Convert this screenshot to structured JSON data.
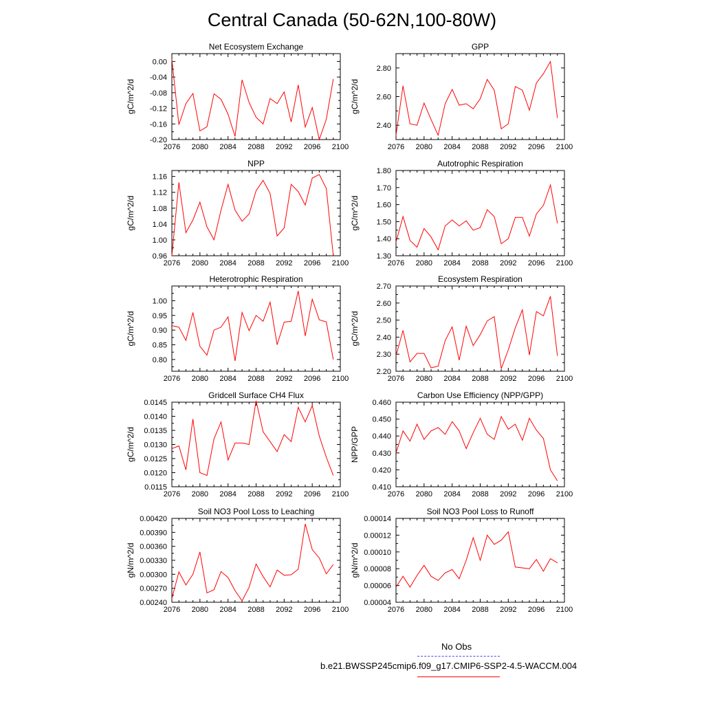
{
  "title": "Central Canada (50-62N,100-80W)",
  "legend": {
    "obs_label": "No Obs",
    "case_label": "b.e21.BWSSP245cmip6.f09_g17.CMIP6-SSP2-4.5-WACCM.004",
    "case_color": "#ff0000",
    "obs_color": "#4a4aff"
  },
  "chart_data": [
    {
      "type": "line",
      "title": "Net Ecosystem Exchange",
      "ylabel": "gC/m^2/d",
      "xlim": [
        2076,
        2100
      ],
      "ylim": [
        -0.2,
        0.02
      ],
      "xticks": [
        2076,
        2080,
        2084,
        2088,
        2092,
        2096,
        2100
      ],
      "xticklabels": [
        "2076",
        "2080",
        "2084",
        "2088",
        "2092",
        "2096",
        "2100"
      ],
      "yticks": [
        -0.2,
        -0.16,
        -0.12,
        -0.08,
        -0.04,
        0.0
      ],
      "yticklabels": [
        "-0.20",
        "-0.16",
        "-0.12",
        "-0.08",
        "-0.04",
        "0.00"
      ],
      "x": [
        2076,
        2077,
        2078,
        2079,
        2080,
        2081,
        2082,
        2083,
        2084,
        2085,
        2086,
        2087,
        2088,
        2089,
        2090,
        2091,
        2092,
        2093,
        2094,
        2095,
        2096,
        2097,
        2098,
        2099
      ],
      "values": [
        0.005,
        -0.162,
        -0.108,
        -0.082,
        -0.178,
        -0.167,
        -0.083,
        -0.097,
        -0.135,
        -0.192,
        -0.047,
        -0.105,
        -0.143,
        -0.16,
        -0.095,
        -0.108,
        -0.078,
        -0.155,
        -0.06,
        -0.168,
        -0.118,
        -0.2,
        -0.148,
        -0.045
      ]
    },
    {
      "type": "line",
      "title": "GPP",
      "ylabel": "gC/m^2/d",
      "xlim": [
        2076,
        2100
      ],
      "ylim": [
        2.3,
        2.9
      ],
      "xticks": [
        2076,
        2080,
        2084,
        2088,
        2092,
        2096,
        2100
      ],
      "xticklabels": [
        "2076",
        "2080",
        "2084",
        "2088",
        "2092",
        "2096",
        "2100"
      ],
      "yticks": [
        2.4,
        2.6,
        2.8
      ],
      "yticklabels": [
        "2.40",
        "2.60",
        "2.80"
      ],
      "x": [
        2076,
        2077,
        2078,
        2079,
        2080,
        2081,
        2082,
        2083,
        2084,
        2085,
        2086,
        2087,
        2088,
        2089,
        2090,
        2091,
        2092,
        2093,
        2094,
        2095,
        2096,
        2097,
        2098,
        2099
      ],
      "values": [
        2.33,
        2.675,
        2.41,
        2.4,
        2.555,
        2.44,
        2.33,
        2.55,
        2.65,
        2.54,
        2.55,
        2.515,
        2.585,
        2.72,
        2.645,
        2.375,
        2.41,
        2.67,
        2.645,
        2.505,
        2.695,
        2.76,
        2.845,
        2.45
      ]
    },
    {
      "type": "line",
      "title": "NPP",
      "ylabel": "gC/m^2/d",
      "xlim": [
        2076,
        2100
      ],
      "ylim": [
        0.96,
        1.175
      ],
      "xticks": [
        2076,
        2080,
        2084,
        2088,
        2092,
        2096,
        2100
      ],
      "xticklabels": [
        "2076",
        "2080",
        "2084",
        "2088",
        "2092",
        "2096",
        "2100"
      ],
      "yticks": [
        0.96,
        1.0,
        1.04,
        1.08,
        1.12,
        1.16
      ],
      "yticklabels": [
        "0.96",
        "1.00",
        "1.04",
        "1.08",
        "1.12",
        "1.16"
      ],
      "x": [
        2076,
        2077,
        2078,
        2079,
        2080,
        2081,
        2082,
        2083,
        2084,
        2085,
        2086,
        2087,
        2088,
        2089,
        2090,
        2091,
        2092,
        2093,
        2094,
        2095,
        2096,
        2097,
        2098,
        2099
      ],
      "values": [
        0.96,
        1.145,
        1.018,
        1.05,
        1.095,
        1.033,
        1.0,
        1.075,
        1.14,
        1.075,
        1.047,
        1.065,
        1.124,
        1.15,
        1.117,
        1.01,
        1.03,
        1.14,
        1.122,
        1.088,
        1.156,
        1.165,
        1.13,
        0.96
      ]
    },
    {
      "type": "line",
      "title": "Autotrophic Respiration",
      "ylabel": "gC/m^2/d",
      "xlim": [
        2076,
        2100
      ],
      "ylim": [
        1.3,
        1.8
      ],
      "xticks": [
        2076,
        2080,
        2084,
        2088,
        2092,
        2096,
        2100
      ],
      "xticklabels": [
        "2076",
        "2080",
        "2084",
        "2088",
        "2092",
        "2096",
        "2100"
      ],
      "yticks": [
        1.3,
        1.4,
        1.5,
        1.6,
        1.7,
        1.8
      ],
      "yticklabels": [
        "1.30",
        "1.40",
        "1.50",
        "1.60",
        "1.70",
        "1.80"
      ],
      "x": [
        2076,
        2077,
        2078,
        2079,
        2080,
        2081,
        2082,
        2083,
        2084,
        2085,
        2086,
        2087,
        2088,
        2089,
        2090,
        2091,
        2092,
        2093,
        2094,
        2095,
        2096,
        2097,
        2098,
        2099
      ],
      "values": [
        1.38,
        1.53,
        1.39,
        1.35,
        1.46,
        1.41,
        1.335,
        1.475,
        1.51,
        1.475,
        1.505,
        1.45,
        1.465,
        1.57,
        1.53,
        1.37,
        1.4,
        1.525,
        1.525,
        1.415,
        1.545,
        1.595,
        1.715,
        1.49
      ]
    },
    {
      "type": "line",
      "title": "Heterotrophic Respiration",
      "ylabel": "gC/m^2/d",
      "xlim": [
        2076,
        2100
      ],
      "ylim": [
        0.76,
        1.05
      ],
      "xticks": [
        2076,
        2080,
        2084,
        2088,
        2092,
        2096,
        2100
      ],
      "xticklabels": [
        "2076",
        "2080",
        "2084",
        "2088",
        "2092",
        "2096",
        "2100"
      ],
      "yticks": [
        0.8,
        0.85,
        0.9,
        0.95,
        1.0
      ],
      "yticklabels": [
        "0.80",
        "0.85",
        "0.90",
        "0.95",
        "1.00"
      ],
      "x": [
        2076,
        2077,
        2078,
        2079,
        2080,
        2081,
        2082,
        2083,
        2084,
        2085,
        2086,
        2087,
        2088,
        2089,
        2090,
        2091,
        2092,
        2093,
        2094,
        2095,
        2096,
        2097,
        2098,
        2099
      ],
      "values": [
        0.915,
        0.91,
        0.865,
        0.96,
        0.845,
        0.815,
        0.9,
        0.91,
        0.945,
        0.795,
        0.96,
        0.898,
        0.95,
        0.93,
        0.995,
        0.85,
        0.927,
        0.93,
        1.033,
        0.88,
        1.005,
        0.935,
        0.928,
        0.8
      ]
    },
    {
      "type": "line",
      "title": "Ecosystem Respiration",
      "ylabel": "gC/m^2/d",
      "xlim": [
        2076,
        2100
      ],
      "ylim": [
        2.2,
        2.7
      ],
      "xticks": [
        2076,
        2080,
        2084,
        2088,
        2092,
        2096,
        2100
      ],
      "xticklabels": [
        "2076",
        "2080",
        "2084",
        "2088",
        "2092",
        "2096",
        "2100"
      ],
      "yticks": [
        2.2,
        2.3,
        2.4,
        2.5,
        2.6,
        2.7
      ],
      "yticklabels": [
        "2.20",
        "2.30",
        "2.40",
        "2.50",
        "2.60",
        "2.70"
      ],
      "x": [
        2076,
        2077,
        2078,
        2079,
        2080,
        2081,
        2082,
        2083,
        2084,
        2085,
        2086,
        2087,
        2088,
        2089,
        2090,
        2091,
        2092,
        2093,
        2094,
        2095,
        2096,
        2097,
        2098,
        2099
      ],
      "values": [
        2.29,
        2.44,
        2.255,
        2.305,
        2.305,
        2.22,
        2.23,
        2.38,
        2.46,
        2.265,
        2.465,
        2.35,
        2.415,
        2.495,
        2.52,
        2.215,
        2.325,
        2.455,
        2.56,
        2.295,
        2.55,
        2.525,
        2.64,
        2.29
      ]
    },
    {
      "type": "line",
      "title": "Gridcell Surface CH4 Flux",
      "ylabel": "gC/m^2/d",
      "xlim": [
        2076,
        2100
      ],
      "ylim": [
        0.0115,
        0.0145
      ],
      "xticks": [
        2076,
        2080,
        2084,
        2088,
        2092,
        2096,
        2100
      ],
      "xticklabels": [
        "2076",
        "2080",
        "2084",
        "2088",
        "2092",
        "2096",
        "2100"
      ],
      "yticks": [
        0.0115,
        0.012,
        0.0125,
        0.013,
        0.0135,
        0.014,
        0.0145
      ],
      "yticklabels": [
        "0.0115",
        "0.0120",
        "0.0125",
        "0.0130",
        "0.0135",
        "0.0140",
        "0.0145"
      ],
      "x": [
        2076,
        2077,
        2078,
        2079,
        2080,
        2081,
        2082,
        2083,
        2084,
        2085,
        2086,
        2087,
        2088,
        2089,
        2090,
        2091,
        2092,
        2093,
        2094,
        2095,
        2096,
        2097,
        2098,
        2099
      ],
      "values": [
        0.01285,
        0.01295,
        0.0121,
        0.0139,
        0.012,
        0.0119,
        0.0132,
        0.0138,
        0.01245,
        0.01305,
        0.01305,
        0.013,
        0.01455,
        0.01345,
        0.0131,
        0.01275,
        0.01335,
        0.0131,
        0.01432,
        0.0138,
        0.01438,
        0.0133,
        0.01255,
        0.0119
      ]
    },
    {
      "type": "line",
      "title": "Carbon Use Efficiency (NPP/GPP)",
      "ylabel": "NPP/GPP",
      "xlim": [
        2076,
        2100
      ],
      "ylim": [
        0.41,
        0.46
      ],
      "xticks": [
        2076,
        2080,
        2084,
        2088,
        2092,
        2096,
        2100
      ],
      "xticklabels": [
        "2076",
        "2080",
        "2084",
        "2088",
        "2092",
        "2096",
        "2100"
      ],
      "yticks": [
        0.41,
        0.42,
        0.43,
        0.44,
        0.45,
        0.46
      ],
      "yticklabels": [
        "0.410",
        "0.420",
        "0.430",
        "0.440",
        "0.450",
        "0.460"
      ],
      "x": [
        2076,
        2077,
        2078,
        2079,
        2080,
        2081,
        2082,
        2083,
        2084,
        2085,
        2086,
        2087,
        2088,
        2089,
        2090,
        2091,
        2092,
        2093,
        2094,
        2095,
        2096,
        2097,
        2098,
        2099
      ],
      "values": [
        0.43,
        0.443,
        0.437,
        0.447,
        0.438,
        0.443,
        0.445,
        0.441,
        0.4485,
        0.443,
        0.4325,
        0.442,
        0.4505,
        0.441,
        0.438,
        0.4515,
        0.444,
        0.447,
        0.4375,
        0.4505,
        0.4435,
        0.4385,
        0.42,
        0.4135
      ]
    },
    {
      "type": "line",
      "title": "Soil NO3 Pool Loss to Leaching",
      "ylabel": "gN/m^2/d",
      "xlim": [
        2076,
        2100
      ],
      "ylim": [
        0.0024,
        0.0042
      ],
      "xticks": [
        2076,
        2080,
        2084,
        2088,
        2092,
        2096,
        2100
      ],
      "xticklabels": [
        "2076",
        "2080",
        "2084",
        "2088",
        "2092",
        "2096",
        "2100"
      ],
      "yticks": [
        0.0024,
        0.0027,
        0.003,
        0.0033,
        0.0036,
        0.0039,
        0.0042
      ],
      "yticklabels": [
        "0.00240",
        "0.00270",
        "0.00300",
        "0.00330",
        "0.00360",
        "0.00390",
        "0.00420"
      ],
      "x": [
        2076,
        2077,
        2078,
        2079,
        2080,
        2081,
        2082,
        2083,
        2084,
        2085,
        2086,
        2087,
        2088,
        2089,
        2090,
        2091,
        2092,
        2093,
        2094,
        2095,
        2096,
        2097,
        2098,
        2099
      ],
      "values": [
        0.00248,
        0.00305,
        0.00277,
        0.003,
        0.00348,
        0.0026,
        0.00267,
        0.00306,
        0.00293,
        0.00265,
        0.00243,
        0.00272,
        0.00322,
        0.00295,
        0.00273,
        0.00309,
        0.00298,
        0.00299,
        0.00311,
        0.00408,
        0.00353,
        0.00335,
        0.00301,
        0.00321
      ]
    },
    {
      "type": "line",
      "title": "Soil NO3 Pool Loss to Runoff",
      "ylabel": "gN/m^2/d",
      "xlim": [
        2076,
        2100
      ],
      "ylim": [
        4e-05,
        0.00014
      ],
      "xticks": [
        2076,
        2080,
        2084,
        2088,
        2092,
        2096,
        2100
      ],
      "xticklabels": [
        "2076",
        "2080",
        "2084",
        "2088",
        "2092",
        "2096",
        "2100"
      ],
      "yticks": [
        4e-05,
        6e-05,
        8e-05,
        0.0001,
        0.00012,
        0.00014
      ],
      "yticklabels": [
        "0.00004",
        "0.00006",
        "0.00008",
        "0.00010",
        "0.00012",
        "0.00014"
      ],
      "x": [
        2076,
        2077,
        2078,
        2079,
        2080,
        2081,
        2082,
        2083,
        2084,
        2085,
        2086,
        2087,
        2088,
        2089,
        2090,
        2091,
        2092,
        2093,
        2094,
        2095,
        2096,
        2097,
        2098,
        2099
      ],
      "values": [
        5.8e-05,
        7.1e-05,
        5.8e-05,
        7.2e-05,
        8.4e-05,
        7.1e-05,
        6.6e-05,
        7.5e-05,
        7.9e-05,
        6.8e-05,
        9e-05,
        0.000117,
        9e-05,
        0.00012,
        0.000109,
        0.000114,
        0.000124,
        8.2e-05,
        8.1e-05,
        8e-05,
        9.1e-05,
        7.7e-05,
        9.2e-05,
        8.7e-05
      ]
    }
  ]
}
